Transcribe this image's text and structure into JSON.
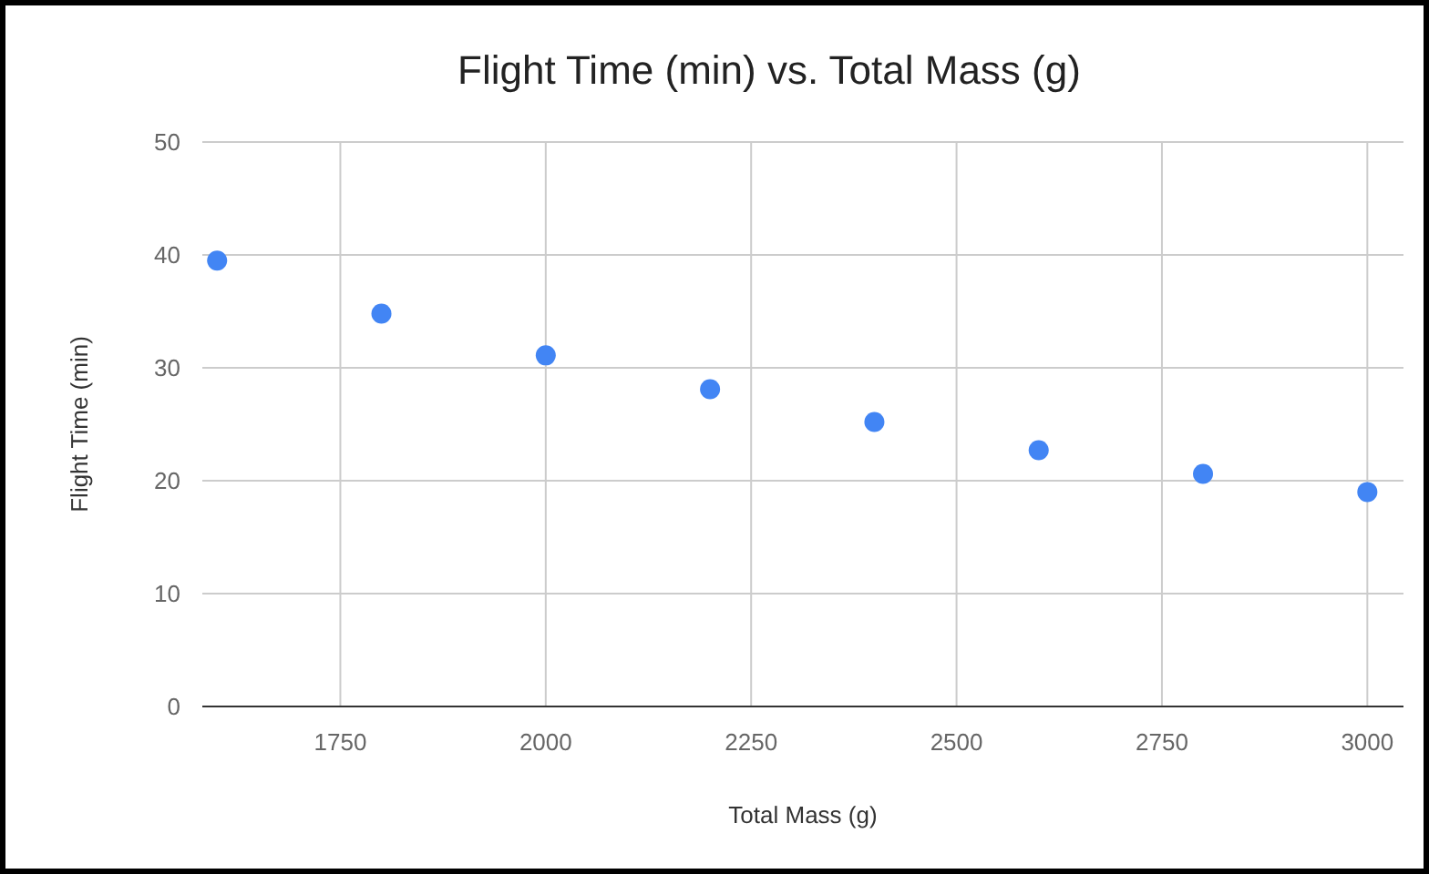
{
  "chart_data": {
    "type": "scatter",
    "title": "Flight Time (min) vs. Total Mass (g)",
    "xlabel": "Total Mass (g)",
    "ylabel": "Flight Time (min)",
    "x": [
      1600,
      1800,
      2000,
      2200,
      2400,
      2600,
      2800,
      3000
    ],
    "series": [
      {
        "color": "#4285f4",
        "values": [
          39.5,
          34.8,
          31.1,
          28.1,
          25.2,
          22.7,
          20.6,
          19.0
        ]
      }
    ],
    "xlim": [
      1582,
      3044
    ],
    "xticks": [
      1750,
      2000,
      2250,
      2500,
      2750,
      3000
    ],
    "ylim": [
      0,
      50
    ],
    "yticks": [
      0,
      10,
      20,
      30,
      40,
      50
    ],
    "grid": true,
    "marker": "circle"
  }
}
